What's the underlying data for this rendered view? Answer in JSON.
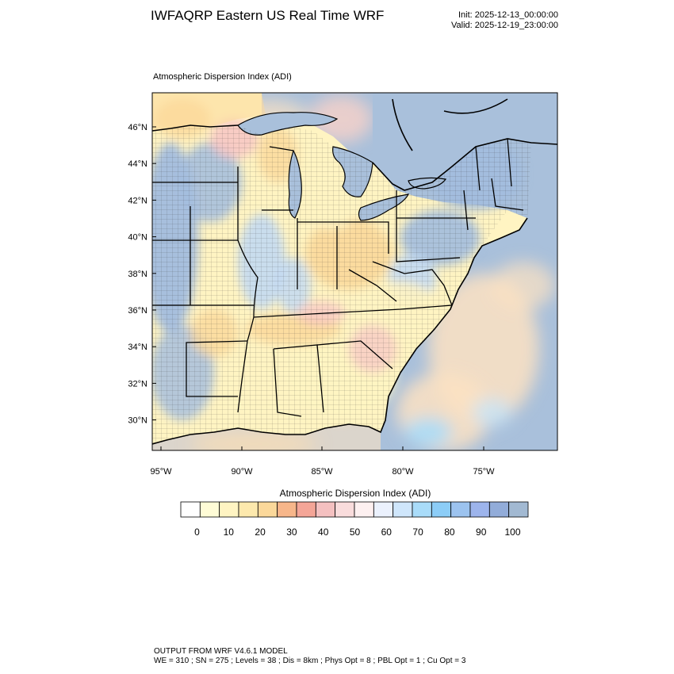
{
  "header": {
    "title": "IWFAQRP Eastern US Real Time WRF",
    "init": "Init: 2025-12-13_00:00:00",
    "valid": "Valid: 2025-12-19_23:00:00"
  },
  "field": {
    "title": "Atmospheric Dispersion Index   (ADI)"
  },
  "axes": {
    "lat_labels": [
      "46°N",
      "44°N",
      "42°N",
      "40°N",
      "38°N",
      "36°N",
      "34°N",
      "32°N",
      "30°N"
    ],
    "lon_labels": [
      "95°W",
      "90°W",
      "85°W",
      "80°W",
      "75°W"
    ]
  },
  "colorbar": {
    "title": "Atmospheric Dispersion Index  (ADI)",
    "tick_labels": [
      "0",
      "10",
      "20",
      "30",
      "40",
      "50",
      "60",
      "70",
      "80",
      "90",
      "100"
    ],
    "colors": [
      "#ffffff",
      "#fffcd6",
      "#fff4c2",
      "#fde9ad",
      "#fbd89a",
      "#f7b68a",
      "#f4a597",
      "#f4c0c0",
      "#f9dcdc",
      "#fdf0f0",
      "#ebf1fd",
      "#cfe6fb",
      "#a9dcf9",
      "#8ccdf7",
      "#9cc3ef",
      "#9db4ec",
      "#92acd9",
      "#a2b9d2"
    ]
  },
  "map_colors": {
    "water": "#a9c0db",
    "land_warm": "#fff4c2",
    "land_orange": "#fbd89a",
    "land_pink": "#f7c4c4",
    "land_cool": "#a2bcde",
    "land_lightblue": "#bfd8f5",
    "ocean_warm": "#fde2c2"
  },
  "footer": {
    "line1": "OUTPUT FROM WRF V4.6.1 MODEL",
    "line2": "WE = 310 ; SN = 275 ; Levels = 38 ; Dis = 8km ; Phys Opt = 8 ; PBL Opt = 1 ; Cu Opt = 3"
  }
}
